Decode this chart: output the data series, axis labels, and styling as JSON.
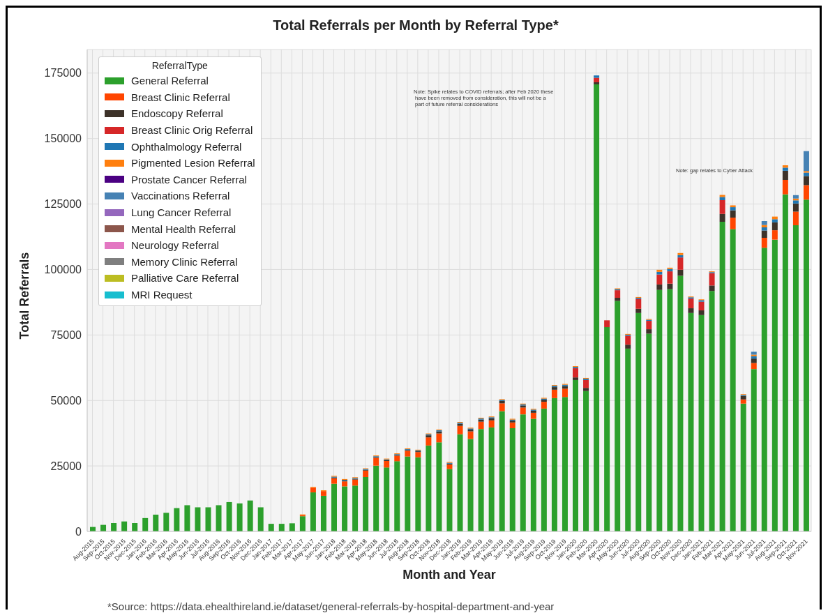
{
  "chart_data": {
    "type": "bar",
    "stacked": true,
    "title": "Total Referrals per Month by Referral Type*",
    "xlabel": "Month and Year",
    "ylabel": "Total Referrals",
    "legend_title": "ReferralType",
    "legend": "top left",
    "grid": true,
    "categories": [
      "Aug-2015",
      "Sep-2015",
      "Oct-2015",
      "Nov-2015",
      "Dec-2015",
      "Jan-2016",
      "Feb-2016",
      "Mar-2016",
      "Apr-2016",
      "May-2016",
      "Jun-2016",
      "Jul-2016",
      "Aug-2016",
      "Sep-2016",
      "Oct-2016",
      "Nov-2016",
      "Dec-2016",
      "Jan-2017",
      "Feb-2017",
      "Mar-2017",
      "Apr-2017",
      "May-2017",
      "Jun-2017",
      "Jan-2018",
      "Feb-2018",
      "Mar-2018",
      "Apr-2018",
      "May-2018",
      "Jun-2018",
      "Jul-2018",
      "Aug-2018",
      "Sep-2018",
      "Oct-2018",
      "Nov-2018",
      "Dec-2018",
      "Jan-2019",
      "Feb-2019",
      "Mar-2019",
      "Apr-2019",
      "May-2019",
      "Jun-2019",
      "Jul-2019",
      "Aug-2019",
      "Sep-2019",
      "Oct-2019",
      "Nov-2019",
      "Jan-2020",
      "Feb-2020",
      "Mar-2020",
      "Apr-2020",
      "May-2020",
      "Jun-2020",
      "Jul-2020",
      "Aug-2020",
      "Sep-2020",
      "Oct-2020",
      "Nov-2020",
      "Dec-2020",
      "Jan-2021",
      "Feb-2021",
      "Mar-2021",
      "Apr-2021",
      "May-2021",
      "Jun-2021",
      "Jul-2021",
      "Aug-2021",
      "Sep-2021",
      "Oct-2021",
      "Nov-2021"
    ],
    "ylim": [
      0,
      184000
    ],
    "yticks": [
      0,
      25000,
      50000,
      75000,
      100000,
      125000,
      150000,
      175000
    ],
    "series": [
      {
        "name": "General Referral",
        "color": "#2ca02c",
        "values": [
          1700,
          2500,
          3200,
          3800,
          3200,
          5100,
          6400,
          7100,
          8900,
          10000,
          9200,
          9200,
          10000,
          11200,
          10700,
          11800,
          9200,
          2900,
          2900,
          3100,
          5800,
          14900,
          13600,
          18200,
          17200,
          17500,
          20800,
          25100,
          24400,
          26800,
          28600,
          28300,
          32800,
          34000,
          23800,
          37100,
          35300,
          39100,
          39700,
          45900,
          39400,
          44700,
          43000,
          46900,
          50900,
          51300,
          57800,
          53600,
          170700,
          78000,
          88000,
          69800,
          83400,
          75500,
          92200,
          92500,
          97600,
          83400,
          82600,
          91800,
          118200,
          115400,
          48800,
          62000,
          108300,
          111400,
          128700,
          116900,
          126700
        ]
      },
      {
        "name": "Breast Clinic Referral",
        "color": "#ff4500",
        "values": [
          null,
          null,
          null,
          null,
          null,
          null,
          null,
          null,
          null,
          null,
          null,
          null,
          null,
          null,
          null,
          null,
          null,
          null,
          null,
          null,
          400,
          1800,
          1800,
          2100,
          1900,
          2300,
          2400,
          3000,
          2500,
          2100,
          2200,
          2000,
          3100,
          3400,
          1700,
          3200,
          2900,
          2800,
          2700,
          3000,
          2200,
          2600,
          2300,
          2600,
          3200,
          3200,
          null,
          null,
          null,
          null,
          null,
          null,
          null,
          null,
          null,
          null,
          null,
          null,
          null,
          null,
          null,
          4400,
          1600,
          2300,
          3800,
          3600,
          5500,
          5200,
          5500
        ]
      },
      {
        "name": "Endoscopy Referral",
        "color": "#3d3229",
        "values": [
          null,
          null,
          null,
          null,
          null,
          null,
          null,
          null,
          null,
          null,
          null,
          null,
          null,
          null,
          null,
          null,
          null,
          null,
          null,
          null,
          null,
          null,
          null,
          300,
          300,
          300,
          300,
          300,
          300,
          300,
          300,
          300,
          800,
          800,
          400,
          800,
          700,
          800,
          800,
          900,
          700,
          800,
          800,
          800,
          1000,
          1000,
          1000,
          1200,
          800,
          null,
          1200,
          1500,
          1600,
          1700,
          2100,
          2100,
          2300,
          1800,
          1800,
          2100,
          3000,
          2800,
          1300,
          1700,
          2800,
          3000,
          3500,
          3100,
          3500
        ]
      },
      {
        "name": "Breast Clinic Orig Referral",
        "color": "#d62728",
        "values": [
          null,
          null,
          null,
          null,
          null,
          null,
          null,
          null,
          null,
          null,
          null,
          null,
          null,
          null,
          null,
          null,
          null,
          null,
          null,
          null,
          null,
          null,
          null,
          null,
          null,
          null,
          null,
          null,
          null,
          null,
          null,
          null,
          null,
          null,
          null,
          null,
          null,
          null,
          null,
          null,
          null,
          null,
          null,
          null,
          null,
          null,
          3500,
          3000,
          1700,
          2600,
          2900,
          3400,
          3800,
          3200,
          3800,
          4700,
          4700,
          3700,
          3300,
          4700,
          5300,
          null,
          null,
          null,
          null,
          null,
          null,
          null,
          null
        ]
      },
      {
        "name": "Ophthalmology Referral",
        "color": "#1f77b4",
        "values": [
          null,
          null,
          null,
          null,
          null,
          null,
          null,
          null,
          null,
          null,
          null,
          null,
          null,
          null,
          null,
          null,
          null,
          null,
          null,
          null,
          null,
          null,
          null,
          300,
          300,
          300,
          300,
          300,
          300,
          300,
          300,
          300,
          400,
          400,
          300,
          400,
          400,
          400,
          400,
          400,
          400,
          400,
          400,
          400,
          500,
          500,
          500,
          500,
          900,
          null,
          400,
          400,
          400,
          400,
          1000,
          900,
          900,
          500,
          600,
          400,
          1200,
          1200,
          400,
          900,
          1200,
          1200,
          1200,
          1200,
          1300
        ]
      },
      {
        "name": "Pigmented Lesion Referral",
        "color": "#ff7f0e",
        "values": [
          null,
          null,
          null,
          null,
          null,
          null,
          null,
          null,
          null,
          null,
          null,
          null,
          null,
          null,
          null,
          null,
          null,
          null,
          null,
          null,
          300,
          300,
          300,
          300,
          300,
          300,
          300,
          300,
          300,
          300,
          300,
          300,
          300,
          300,
          300,
          300,
          300,
          300,
          300,
          300,
          300,
          300,
          300,
          300,
          300,
          300,
          300,
          300,
          null,
          null,
          300,
          300,
          300,
          300,
          800,
          500,
          800,
          300,
          300,
          300,
          800,
          700,
          300,
          600,
          900,
          1000,
          900,
          700,
          600
        ]
      },
      {
        "name": "Prostate Cancer Referral",
        "color": "#4b0082",
        "values": [
          null,
          null,
          null,
          null,
          null,
          null,
          null,
          null,
          null,
          null,
          null,
          null,
          null,
          null,
          null,
          null,
          null,
          null,
          null,
          null,
          null,
          null,
          null,
          null,
          null,
          null,
          null,
          null,
          null,
          null,
          null,
          null,
          null,
          null,
          null,
          null,
          null,
          null,
          null,
          null,
          null,
          null,
          null,
          null,
          null,
          null,
          null,
          null,
          null,
          null,
          null,
          null,
          null,
          null,
          null,
          null,
          null,
          null,
          null,
          null,
          null,
          null,
          null,
          null,
          null,
          null,
          null,
          null,
          null
        ]
      },
      {
        "name": "Vaccinations Referral",
        "color": "#4682b4",
        "values": [
          null,
          null,
          null,
          null,
          null,
          null,
          null,
          null,
          null,
          null,
          null,
          null,
          null,
          null,
          null,
          null,
          null,
          null,
          null,
          null,
          null,
          null,
          null,
          null,
          null,
          null,
          null,
          null,
          null,
          null,
          null,
          null,
          null,
          null,
          null,
          null,
          null,
          null,
          null,
          null,
          null,
          null,
          null,
          null,
          null,
          null,
          null,
          null,
          null,
          null,
          null,
          null,
          null,
          null,
          null,
          null,
          null,
          null,
          null,
          null,
          null,
          null,
          null,
          1100,
          1500,
          null,
          null,
          1300,
          7600
        ]
      },
      {
        "name": "Lung Cancer Referral",
        "color": "#9467bd",
        "values": [
          null,
          null,
          null,
          null,
          null,
          null,
          null,
          null,
          null,
          null,
          null,
          null,
          null,
          null,
          null,
          null,
          null,
          null,
          null,
          null,
          null,
          null,
          null,
          null,
          null,
          null,
          null,
          null,
          null,
          null,
          null,
          null,
          null,
          null,
          null,
          null,
          null,
          null,
          null,
          null,
          null,
          null,
          null,
          null,
          null,
          null,
          null,
          null,
          null,
          null,
          null,
          null,
          null,
          null,
          null,
          null,
          null,
          null,
          null,
          null,
          null,
          null,
          null,
          null,
          null,
          null,
          null,
          null,
          null
        ]
      },
      {
        "name": "Mental Health Referral",
        "color": "#8c564b",
        "values": [
          null,
          null,
          null,
          null,
          null,
          null,
          null,
          null,
          null,
          null,
          null,
          null,
          null,
          null,
          null,
          null,
          null,
          null,
          null,
          null,
          null,
          null,
          null,
          null,
          null,
          null,
          null,
          null,
          null,
          null,
          null,
          null,
          null,
          null,
          null,
          null,
          null,
          null,
          null,
          null,
          null,
          null,
          null,
          null,
          null,
          null,
          null,
          null,
          null,
          null,
          null,
          null,
          null,
          null,
          null,
          null,
          null,
          null,
          null,
          null,
          null,
          null,
          null,
          null,
          null,
          null,
          null,
          null,
          null
        ]
      },
      {
        "name": "Neurology Referral",
        "color": "#e377c2",
        "values": [
          null,
          null,
          null,
          null,
          null,
          null,
          null,
          null,
          null,
          null,
          null,
          null,
          null,
          null,
          null,
          null,
          null,
          null,
          null,
          null,
          null,
          null,
          null,
          null,
          null,
          null,
          null,
          null,
          null,
          null,
          null,
          null,
          null,
          null,
          null,
          null,
          null,
          null,
          null,
          null,
          null,
          null,
          null,
          null,
          null,
          null,
          null,
          null,
          null,
          null,
          null,
          null,
          null,
          null,
          null,
          null,
          null,
          null,
          null,
          null,
          null,
          null,
          null,
          null,
          null,
          null,
          null,
          null,
          null
        ]
      },
      {
        "name": "Memory Clinic Referral",
        "color": "#7f7f7f",
        "values": [
          null,
          null,
          null,
          null,
          null,
          null,
          null,
          null,
          null,
          null,
          null,
          null,
          null,
          null,
          null,
          null,
          null,
          null,
          null,
          null,
          null,
          null,
          null,
          null,
          null,
          null,
          null,
          null,
          null,
          null,
          null,
          null,
          null,
          null,
          null,
          null,
          null,
          null,
          null,
          null,
          null,
          null,
          null,
          null,
          null,
          null,
          null,
          null,
          null,
          null,
          null,
          null,
          null,
          null,
          null,
          null,
          null,
          null,
          null,
          null,
          null,
          null,
          null,
          null,
          null,
          null,
          null,
          null,
          null
        ]
      },
      {
        "name": "Palliative Care Referral",
        "color": "#bcbd22",
        "values": [
          null,
          null,
          null,
          null,
          null,
          null,
          null,
          null,
          null,
          null,
          null,
          null,
          null,
          null,
          null,
          null,
          null,
          null,
          null,
          null,
          null,
          null,
          null,
          null,
          null,
          null,
          null,
          null,
          null,
          null,
          null,
          null,
          null,
          null,
          null,
          null,
          null,
          null,
          null,
          null,
          null,
          null,
          null,
          null,
          null,
          null,
          null,
          null,
          null,
          null,
          null,
          null,
          null,
          null,
          null,
          null,
          null,
          null,
          null,
          null,
          null,
          null,
          null,
          null,
          null,
          null,
          null,
          null,
          null
        ]
      },
      {
        "name": "MRI Request",
        "color": "#17becf",
        "values": [
          null,
          null,
          null,
          null,
          null,
          null,
          null,
          null,
          null,
          null,
          null,
          null,
          null,
          null,
          null,
          null,
          null,
          null,
          null,
          null,
          null,
          null,
          null,
          null,
          null,
          null,
          null,
          null,
          null,
          null,
          null,
          null,
          null,
          null,
          null,
          null,
          null,
          null,
          null,
          null,
          null,
          null,
          null,
          null,
          null,
          null,
          null,
          null,
          null,
          null,
          null,
          null,
          null,
          null,
          null,
          null,
          null,
          null,
          null,
          null,
          null,
          null,
          null,
          null,
          null,
          null,
          null,
          null,
          null
        ]
      }
    ],
    "annotations": [
      "Note: Spike relates to COVID referrals; after Feb 2020 these\n have been removed from consideration, this will not be a\n part of future referral considerations",
      "Note: gap relates to Cyber Attack",
      "*Source: https://data.ehealthireland.ie/dataset/general-referrals-by-hospital-department-and-year"
    ]
  }
}
